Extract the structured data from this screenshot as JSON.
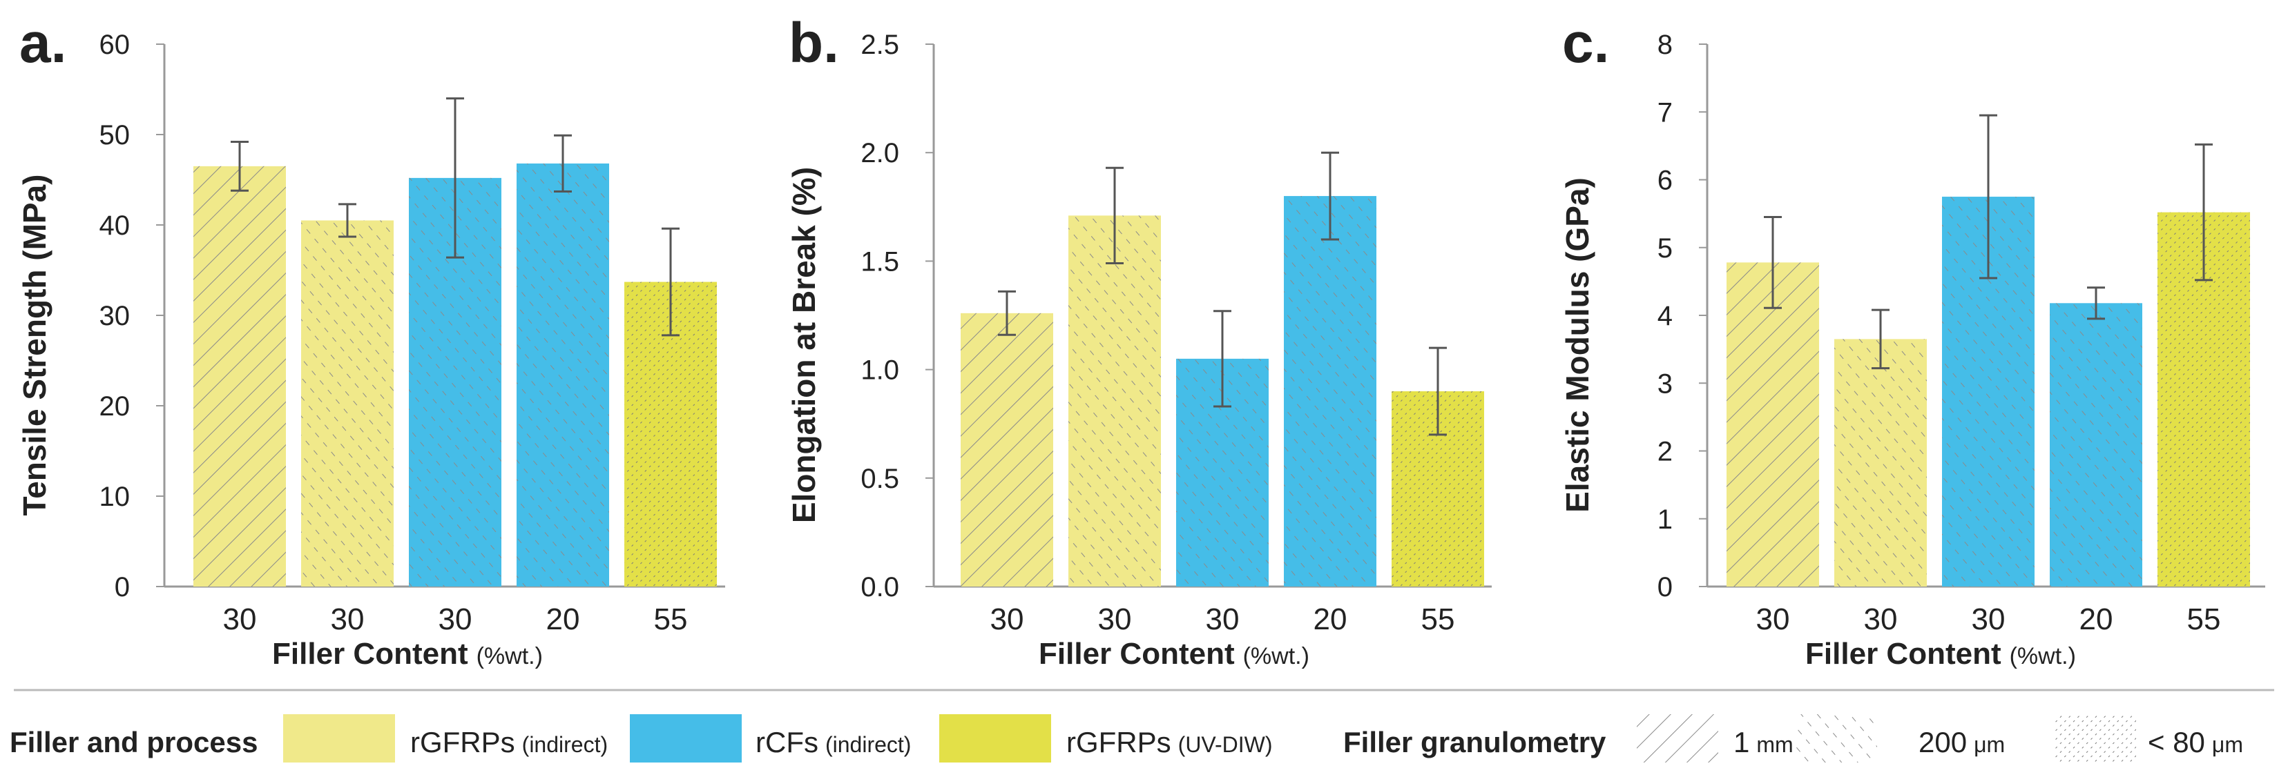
{
  "colors": {
    "rgfrp_indirect": "#f0e98a",
    "rcf_indirect": "#45bde8",
    "rgfrp_uvdiw": "#e3e048",
    "axis": "#999999",
    "error": "#555555"
  },
  "chart_data": [
    {
      "type": "bar",
      "panel": "a.",
      "ylabel": "Tensile Strength (MPa)",
      "xlabel": "Filler Content",
      "xlabel_unit": "(%wt.)",
      "ylim": [
        0,
        60
      ],
      "yticks": [
        "0",
        "10",
        "20",
        "30",
        "40",
        "50",
        "60"
      ],
      "categories": [
        "30",
        "30",
        "30",
        "20",
        "55"
      ],
      "values": [
        46.5,
        40.5,
        45.2,
        46.8,
        33.7
      ],
      "errors": [
        2.7,
        1.8,
        8.8,
        3.1,
        5.9
      ],
      "fills": [
        "rgfrp_indirect",
        "rgfrp_indirect",
        "rcf_indirect",
        "rcf_indirect",
        "rgfrp_uvdiw"
      ],
      "patterns": [
        "1mm",
        "200um",
        "200um",
        "200um",
        "80um"
      ]
    },
    {
      "type": "bar",
      "panel": "b.",
      "ylabel": "Elongation at Break (%)",
      "xlabel": "Filler Content",
      "xlabel_unit": "(%wt.)",
      "ylim": [
        0,
        2.5
      ],
      "yticks": [
        "0.0",
        "0.5",
        "1.0",
        "1.5",
        "2.0",
        "2.5"
      ],
      "categories": [
        "30",
        "30",
        "30",
        "20",
        "55"
      ],
      "values": [
        1.26,
        1.71,
        1.05,
        1.8,
        0.9
      ],
      "errors": [
        0.1,
        0.22,
        0.22,
        0.2,
        0.2
      ],
      "fills": [
        "rgfrp_indirect",
        "rgfrp_indirect",
        "rcf_indirect",
        "rcf_indirect",
        "rgfrp_uvdiw"
      ],
      "patterns": [
        "1mm",
        "200um",
        "200um",
        "200um",
        "80um"
      ]
    },
    {
      "type": "bar",
      "panel": "c.",
      "ylabel": "Elastic Modulus (GPa)",
      "xlabel": "Filler Content",
      "xlabel_unit": "(%wt.)",
      "ylim": [
        0,
        8
      ],
      "yticks": [
        "0",
        "1",
        "2",
        "3",
        "4",
        "5",
        "6",
        "7",
        "8"
      ],
      "categories": [
        "30",
        "30",
        "30",
        "20",
        "55"
      ],
      "values": [
        4.78,
        3.65,
        5.75,
        4.18,
        5.52
      ],
      "errors": [
        0.67,
        0.43,
        1.2,
        0.23,
        1.0
      ],
      "fills": [
        "rgfrp_indirect",
        "rgfrp_indirect",
        "rcf_indirect",
        "rcf_indirect",
        "rgfrp_uvdiw"
      ],
      "patterns": [
        "1mm",
        "200um",
        "200um",
        "200um",
        "80um"
      ]
    }
  ],
  "legend": {
    "process_title": "Filler and process",
    "process_items": [
      {
        "label": "rGFRPs",
        "sub": "(indirect)",
        "fill": "rgfrp_indirect"
      },
      {
        "label": "rCFs",
        "sub": "(indirect)",
        "fill": "rcf_indirect"
      },
      {
        "label": "rGFRPs",
        "sub": "(UV-DIW)",
        "fill": "rgfrp_uvdiw"
      }
    ],
    "granulometry_title": "Filler granulometry",
    "granulometry_items": [
      {
        "label": "1",
        "sub": "mm",
        "pattern": "1mm"
      },
      {
        "label": "200",
        "sub": "μm",
        "pattern": "200um"
      },
      {
        "label": "< 80",
        "sub": "μm",
        "pattern": "80um"
      }
    ]
  }
}
